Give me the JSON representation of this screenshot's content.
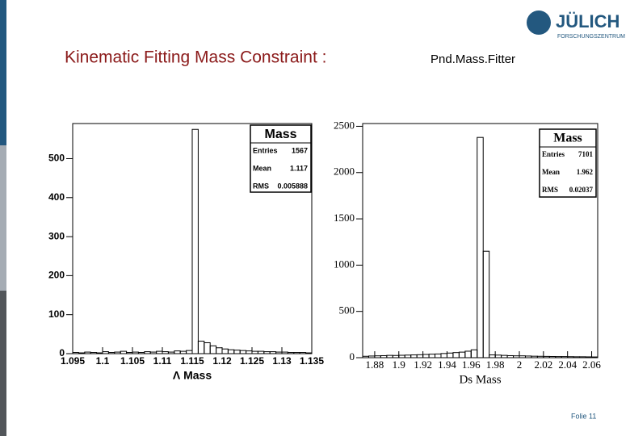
{
  "slide": {
    "title": "Kinematic Fitting Mass Constraint :",
    "subtitle": "Pnd.Mass.Fitter",
    "logo": "JÜLICH",
    "logo_sub": "FORSCHUNGSZENTRUM",
    "footer": "Folie 11"
  },
  "chart_data": [
    {
      "type": "histogram",
      "xlabel": "Λ Mass",
      "color": "#000000",
      "bins": [
        1.095,
        1.096,
        1.097,
        1.098,
        1.099,
        1.1,
        1.101,
        1.102,
        1.103,
        1.104,
        1.105,
        1.106,
        1.107,
        1.108,
        1.109,
        1.11,
        1.111,
        1.112,
        1.113,
        1.114,
        1.115,
        1.116,
        1.117,
        1.118,
        1.119,
        1.12,
        1.121,
        1.122,
        1.123,
        1.124,
        1.125,
        1.126,
        1.127,
        1.128,
        1.129,
        1.13,
        1.131,
        1.132,
        1.133,
        1.134,
        1.135
      ],
      "values": [
        3,
        2,
        4,
        3,
        2,
        5,
        3,
        4,
        6,
        3,
        4,
        3,
        5,
        4,
        6,
        5,
        4,
        7,
        6,
        8,
        575,
        32,
        28,
        20,
        15,
        12,
        10,
        9,
        8,
        7,
        6,
        6,
        5,
        5,
        4,
        4,
        3,
        3,
        3,
        2
      ],
      "xlim": [
        1.095,
        1.135
      ],
      "ylim": [
        0,
        590
      ],
      "xticks": [
        1.095,
        1.1,
        1.105,
        1.11,
        1.115,
        1.12,
        1.125,
        1.13,
        1.135
      ],
      "yticks": [
        0,
        100,
        200,
        300,
        400,
        500
      ],
      "stats": {
        "title": "Mass",
        "rows": [
          {
            "label": "Entries",
            "value": 1567
          },
          {
            "label": "Mean",
            "value": 1.117
          },
          {
            "label": "RMS",
            "value": 0.005888
          }
        ]
      }
    },
    {
      "type": "histogram",
      "xlabel": "Ds Mass",
      "color": "#000000",
      "bins": [
        1.87,
        1.875,
        1.88,
        1.885,
        1.89,
        1.895,
        1.9,
        1.905,
        1.91,
        1.915,
        1.92,
        1.925,
        1.93,
        1.935,
        1.94,
        1.945,
        1.95,
        1.955,
        1.96,
        1.965,
        1.97,
        1.975,
        1.98,
        1.985,
        1.99,
        1.995,
        2,
        2.005,
        2.01,
        2.015,
        2.02,
        2.025,
        2.03,
        2.035,
        2.04,
        2.045,
        2.05,
        2.055,
        2.06,
        2.065
      ],
      "values": [
        15,
        18,
        20,
        22,
        25,
        24,
        26,
        28,
        30,
        32,
        35,
        38,
        40,
        45,
        50,
        55,
        60,
        70,
        85,
        2380,
        1150,
        30,
        28,
        25,
        22,
        20,
        20,
        18,
        16,
        15,
        14,
        13,
        12,
        12,
        11,
        10,
        10,
        9,
        8
      ],
      "xlim": [
        1.87,
        2.065
      ],
      "ylim": [
        0,
        2530
      ],
      "xticks": [
        1.88,
        1.9,
        1.92,
        1.94,
        1.96,
        1.98,
        2,
        2.02,
        2.04,
        2.06
      ],
      "yticks": [
        0,
        500,
        1000,
        1500,
        2000,
        2500
      ],
      "stats": {
        "title": "Mass",
        "rows": [
          {
            "label": "Entries",
            "value": 7101
          },
          {
            "label": "Mean",
            "value": 1.962
          },
          {
            "label": "RMS",
            "value": 0.02037
          }
        ]
      }
    }
  ]
}
